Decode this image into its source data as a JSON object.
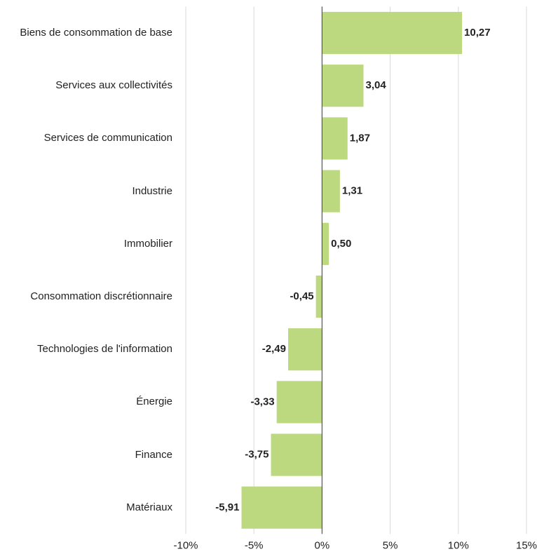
{
  "chart_data": {
    "type": "bar",
    "orientation": "horizontal",
    "categories": [
      "Biens de consommation de base",
      "Services aux collectivités",
      "Services de communication",
      "Industrie",
      "Immobilier",
      "Consommation discrétionnaire",
      "Technologies de l'information",
      "Énergie",
      "Finance",
      "Matériaux"
    ],
    "values": [
      10.27,
      3.04,
      1.87,
      1.31,
      0.5,
      -0.45,
      -2.49,
      -3.33,
      -3.75,
      -5.91
    ],
    "value_labels": [
      "10,27",
      "3,04",
      "1,87",
      "1,31",
      "0,50",
      "-0,45",
      "-2,49",
      "-3,33",
      "-3,75",
      "-5,91"
    ],
    "color": "#bcd97f",
    "xlim": [
      -10,
      15
    ],
    "xticks": [
      {
        "value": -10,
        "label": "-10%"
      },
      {
        "value": -5,
        "label": "-5%"
      },
      {
        "value": 0,
        "label": "0%"
      },
      {
        "value": 5,
        "label": "5%"
      },
      {
        "value": 10,
        "label": "10%"
      },
      {
        "value": 15,
        "label": "15%"
      }
    ],
    "grid": true
  }
}
